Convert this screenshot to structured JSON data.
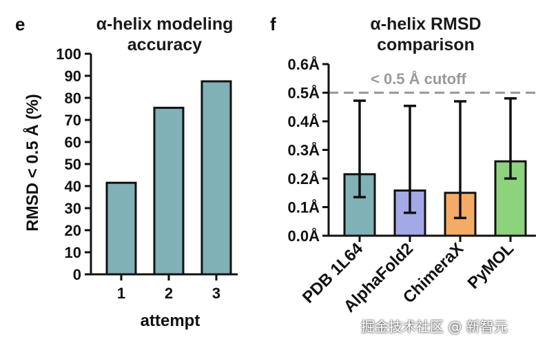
{
  "chart_data": [
    {
      "panel": "e",
      "type": "bar",
      "title": [
        "α-helix modeling",
        "accuracy"
      ],
      "ylabel": "RMSD < 0.5 Å (%)",
      "xlabel": "attempt",
      "categories": [
        "1",
        "2",
        "3"
      ],
      "values": [
        41.5,
        75.5,
        87.5
      ],
      "ylim": [
        0,
        100
      ],
      "yticks": [
        "0",
        "10",
        "20",
        "30",
        "40",
        "50",
        "60",
        "70",
        "80",
        "90",
        "100"
      ],
      "colors": [
        "#7fb1b6",
        "#7fb1b6",
        "#7fb1b6"
      ],
      "grid": false
    },
    {
      "panel": "f",
      "type": "bar",
      "title": [
        "α-helix RMSD",
        "comparison"
      ],
      "categories": [
        "PDB 1L64",
        "AlphaFold2",
        "ChimeraX",
        "PyMOL"
      ],
      "values": [
        0.215,
        0.158,
        0.15,
        0.26
      ],
      "error_low": [
        0.135,
        0.08,
        0.062,
        0.2
      ],
      "error_high": [
        0.472,
        0.454,
        0.47,
        0.48
      ],
      "ylim": [
        0,
        0.6
      ],
      "yticks": [
        "0.0Å",
        "0.1Å",
        "0.2Å",
        "0.3Å",
        "0.4Å",
        "0.5Å",
        "0.6Å"
      ],
      "colors": [
        "#7fb1b6",
        "#a3a8e6",
        "#f3ab66",
        "#8dd27d"
      ],
      "reference_line": {
        "y": 0.5,
        "label": "< 0.5 Å cutoff",
        "color": "#999999",
        "style": "dashed"
      },
      "grid": false
    }
  ],
  "watermark": "掘金技术社区 @ 新智元"
}
